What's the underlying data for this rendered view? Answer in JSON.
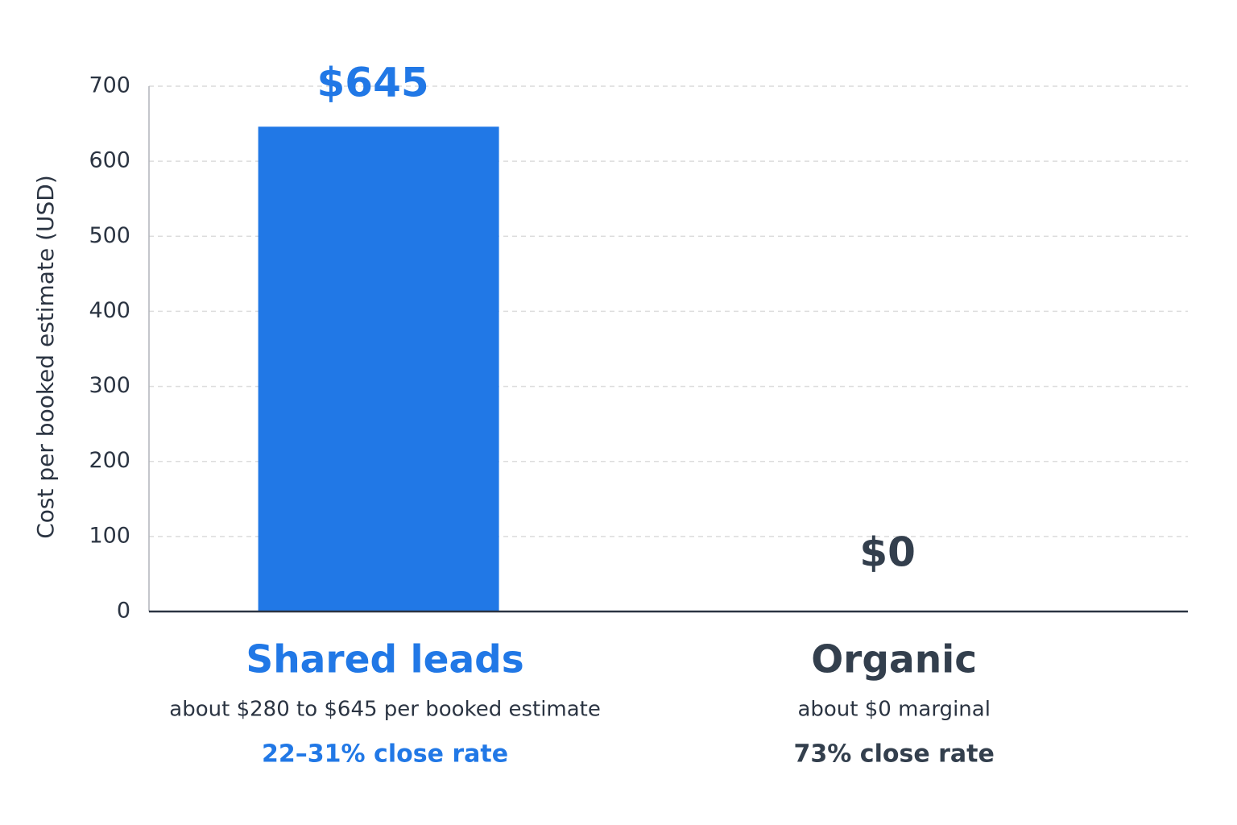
{
  "chart_data": {
    "type": "bar",
    "y_label": "Cost per booked estimate (USD)",
    "categories": [
      "Shared leads",
      "Organic"
    ],
    "values": [
      645,
      0
    ],
    "value_labels": [
      "$645",
      "$0"
    ],
    "colors": [
      "#2178e6",
      "#333f4d"
    ],
    "category_notes": [
      "about $280 to $645 per booked estimate",
      "about $0 marginal"
    ],
    "close_rates": [
      "22–31% close rate",
      "73% close rate"
    ],
    "ylim": [
      0,
      700
    ],
    "yticks": [
      0,
      100,
      200,
      300,
      400,
      500,
      600,
      700
    ],
    "grid": true
  }
}
